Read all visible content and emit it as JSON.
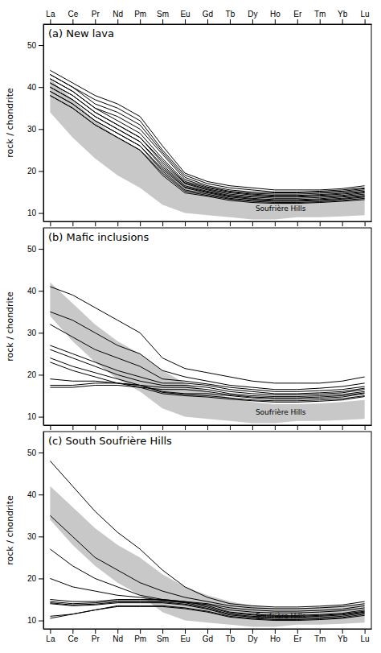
{
  "chart_data": [
    {
      "type": "line",
      "title": "(a) New lava",
      "categories": [
        "La",
        "Ce",
        "Pr",
        "Nd",
        "Pm",
        "Sm",
        "Eu",
        "Gd",
        "Tb",
        "Dy",
        "Ho",
        "Er",
        "Tm",
        "Yb",
        "Lu"
      ],
      "ylabel": "rock / chondrite",
      "ylim": [
        8,
        55
      ],
      "yticks": [
        10,
        20,
        30,
        40,
        50
      ],
      "color": "#000000",
      "band": {
        "label": "Soufrière Hills",
        "color": "#c8c8c8",
        "upper": [
          42,
          37,
          32,
          28,
          25,
          21,
          18,
          16,
          14.5,
          13.5,
          13.0,
          13.0,
          13.2,
          13.5,
          14.0
        ],
        "lower": [
          34,
          28,
          23,
          19,
          16,
          12,
          10,
          9.5,
          9.0,
          8.5,
          8.5,
          9.0,
          9.0,
          9.2,
          9.5
        ]
      },
      "series": [
        {
          "values": [
            44,
            41,
            38,
            36,
            33,
            26,
            19.5,
            17.5,
            16.5,
            16.0,
            15.5,
            15.5,
            15.5,
            15.8,
            16.5
          ]
        },
        {
          "values": [
            43,
            40,
            37,
            35,
            32,
            25,
            19.0,
            17.0,
            16.0,
            15.5,
            15.0,
            15.0,
            15.2,
            15.5,
            16.0
          ]
        },
        {
          "values": [
            43,
            40,
            36,
            34,
            31,
            24.5,
            18.5,
            16.5,
            15.5,
            15.0,
            14.8,
            14.8,
            15.0,
            15.2,
            15.8
          ]
        },
        {
          "values": [
            42,
            39,
            35,
            33,
            30,
            24,
            18.0,
            16.2,
            15.2,
            14.7,
            14.5,
            14.5,
            14.7,
            15.0,
            15.5
          ]
        },
        {
          "values": [
            42,
            39,
            35,
            32,
            29,
            23,
            17.5,
            16.0,
            15.0,
            14.5,
            14.2,
            14.2,
            14.4,
            14.7,
            15.2
          ]
        },
        {
          "values": [
            41,
            38,
            34,
            31,
            28,
            22.5,
            17.2,
            15.7,
            14.8,
            14.3,
            14.0,
            14.0,
            14.2,
            14.5,
            15.0
          ]
        },
        {
          "values": [
            41,
            38,
            34,
            31,
            28,
            22,
            17.0,
            15.5,
            14.5,
            14.0,
            13.8,
            13.8,
            14.0,
            14.2,
            14.8
          ]
        },
        {
          "values": [
            40,
            37,
            33,
            30,
            27,
            21.5,
            16.5,
            15.2,
            14.2,
            13.8,
            13.5,
            13.5,
            13.7,
            14.0,
            14.5
          ]
        },
        {
          "values": [
            40,
            37,
            33,
            30,
            27,
            21,
            16.2,
            15.0,
            14.0,
            13.5,
            13.2,
            13.2,
            13.4,
            13.8,
            14.2
          ]
        },
        {
          "values": [
            39,
            36,
            32,
            29,
            26,
            20.5,
            16.0,
            14.8,
            13.8,
            13.3,
            13.0,
            13.0,
            13.2,
            13.5,
            14.0
          ]
        },
        {
          "values": [
            39,
            36,
            32,
            29,
            26,
            20,
            15.5,
            14.5,
            13.5,
            13.0,
            12.8,
            12.8,
            13.0,
            13.3,
            13.8
          ]
        },
        {
          "values": [
            38,
            35,
            31,
            28,
            25,
            19.5,
            15.2,
            14.2,
            13.3,
            12.8,
            12.5,
            12.5,
            12.7,
            13.0,
            13.5
          ]
        },
        {
          "values": [
            38,
            35,
            31,
            28,
            25,
            19,
            14.8,
            14.0,
            13.0,
            12.5,
            12.3,
            12.3,
            12.5,
            12.8,
            13.2
          ]
        }
      ]
    },
    {
      "type": "line",
      "title": "(b) Mafic inclusions",
      "categories": [
        "La",
        "Ce",
        "Pr",
        "Nd",
        "Pm",
        "Sm",
        "Eu",
        "Gd",
        "Tb",
        "Dy",
        "Ho",
        "Er",
        "Tm",
        "Yb",
        "Lu"
      ],
      "ylabel": "rock / chondrite",
      "ylim": [
        8,
        55
      ],
      "yticks": [
        10,
        20,
        30,
        40,
        50
      ],
      "color": "#000000",
      "tick_labels": "y",
      "band": {
        "label": "Soufrière Hills",
        "color": "#c8c8c8",
        "upper": [
          42,
          37,
          32,
          28,
          25,
          21,
          18,
          16,
          14.5,
          13.5,
          13.0,
          13.0,
          13.2,
          13.5,
          14.0
        ],
        "lower": [
          34,
          28,
          23,
          19,
          16,
          12,
          10,
          9.5,
          9.0,
          8.5,
          8.5,
          9.0,
          9.0,
          9.2,
          9.5
        ]
      },
      "series": [
        {
          "values": [
            41,
            39,
            36,
            33,
            30,
            24,
            21.5,
            20.5,
            19.5,
            18.5,
            18.0,
            18.0,
            18.0,
            18.5,
            19.5
          ]
        },
        {
          "values": [
            35,
            33,
            30,
            27,
            25,
            21,
            19.5,
            18.5,
            17.5,
            17.0,
            16.5,
            16.5,
            16.8,
            17.2,
            18.0
          ]
        },
        {
          "values": [
            32,
            29,
            26,
            24,
            22,
            19,
            18.5,
            17.8,
            17.0,
            16.5,
            16.0,
            16.0,
            16.2,
            16.5,
            17.2
          ]
        },
        {
          "values": [
            27,
            25,
            23,
            21,
            19.5,
            18,
            18.0,
            17.5,
            16.5,
            16.0,
            15.5,
            15.5,
            15.7,
            16.0,
            16.8
          ]
        },
        {
          "values": [
            26,
            24,
            22,
            20,
            18.5,
            17.5,
            17.5,
            17.0,
            16.0,
            15.5,
            15.2,
            15.2,
            15.4,
            15.7,
            16.5
          ]
        },
        {
          "values": [
            24,
            22,
            20.5,
            19,
            17.5,
            17.0,
            17.0,
            16.5,
            15.5,
            15.0,
            14.8,
            14.8,
            15.0,
            15.3,
            16.0
          ]
        },
        {
          "values": [
            23,
            21,
            19.5,
            18,
            17,
            16.5,
            16.5,
            16.0,
            15.2,
            14.7,
            14.5,
            14.5,
            14.7,
            15.0,
            15.7
          ]
        },
        {
          "values": [
            19,
            18.5,
            18.5,
            18,
            17.5,
            16,
            15.5,
            15.5,
            15.0,
            14.5,
            14.2,
            14.2,
            14.4,
            14.7,
            15.5
          ]
        },
        {
          "values": [
            17.5,
            17.5,
            18,
            18,
            17.5,
            15.8,
            15.3,
            15.0,
            14.5,
            14.0,
            13.8,
            13.8,
            14.0,
            14.3,
            15.0
          ]
        },
        {
          "values": [
            17,
            17,
            17.5,
            17.5,
            17,
            15.5,
            15.0,
            14.7,
            14.2,
            13.8,
            13.5,
            13.5,
            13.7,
            14.0,
            14.8
          ]
        }
      ]
    },
    {
      "type": "line",
      "title": "(c) South Soufrière Hills",
      "categories": [
        "La",
        "Ce",
        "Pr",
        "Nd",
        "Pm",
        "Sm",
        "Eu",
        "Gd",
        "Tb",
        "Dy",
        "Ho",
        "Er",
        "Tm",
        "Yb",
        "Lu"
      ],
      "ylabel": "rock / chondrite",
      "ylim": [
        8,
        55
      ],
      "yticks": [
        10,
        20,
        30,
        40,
        50
      ],
      "color": "#000000",
      "band": {
        "label": "Soufrière Hills",
        "color": "#c8c8c8",
        "upper": [
          42,
          37,
          32,
          28,
          25,
          21,
          18,
          16,
          14.5,
          13.5,
          13.0,
          13.0,
          13.2,
          13.5,
          14.0
        ],
        "lower": [
          34,
          28,
          23,
          19,
          16,
          12,
          10,
          9.5,
          9.0,
          8.5,
          8.5,
          9.0,
          9.0,
          9.2,
          9.5
        ]
      },
      "series": [
        {
          "values": [
            48,
            42,
            36,
            31,
            27,
            22,
            18,
            15.5,
            14.0,
            13.5,
            13.2,
            13.2,
            13.4,
            13.7,
            14.5
          ]
        },
        {
          "values": [
            35,
            30,
            25,
            22,
            19,
            17,
            15.5,
            14.5,
            13.5,
            13.0,
            12.8,
            12.8,
            13.0,
            13.3,
            14.0
          ]
        },
        {
          "values": [
            27,
            23,
            20,
            18,
            16,
            15,
            14.5,
            14.0,
            13.0,
            12.5,
            12.2,
            12.2,
            12.4,
            12.7,
            13.5
          ]
        },
        {
          "values": [
            20,
            18,
            17,
            16,
            15.5,
            14.8,
            14.3,
            13.8,
            12.5,
            12.0,
            11.8,
            11.8,
            12.0,
            12.3,
            13.0
          ]
        },
        {
          "values": [
            15,
            14.5,
            14.5,
            15,
            15,
            15,
            14.5,
            13.5,
            12.0,
            11.5,
            11.2,
            11.2,
            11.4,
            11.7,
            12.5
          ]
        },
        {
          "values": [
            14.5,
            14.0,
            14.2,
            14.7,
            14.7,
            14.7,
            14.2,
            13.2,
            11.8,
            11.3,
            11.0,
            11.0,
            11.2,
            11.5,
            12.2
          ]
        },
        {
          "values": [
            14.2,
            13.7,
            13.9,
            14.4,
            14.4,
            14.4,
            13.9,
            12.9,
            11.5,
            11.0,
            10.8,
            10.8,
            11.0,
            11.3,
            12.0
          ]
        },
        {
          "values": [
            14.0,
            13.5,
            13.7,
            14.2,
            14.2,
            14.2,
            13.7,
            12.7,
            11.3,
            10.8,
            10.5,
            10.5,
            10.7,
            11.0,
            11.8
          ]
        },
        {
          "values": [
            11,
            11.5,
            12.5,
            13.5,
            13.5,
            13.5,
            13.0,
            12.2,
            11.0,
            10.5,
            10.2,
            10.2,
            10.4,
            10.7,
            11.5
          ]
        },
        {
          "values": [
            10.5,
            11.5,
            12.5,
            13.3,
            13.3,
            13.3,
            12.8,
            12.0,
            10.8,
            10.3,
            10.0,
            10.0,
            10.2,
            10.5,
            11.2
          ]
        }
      ]
    }
  ]
}
